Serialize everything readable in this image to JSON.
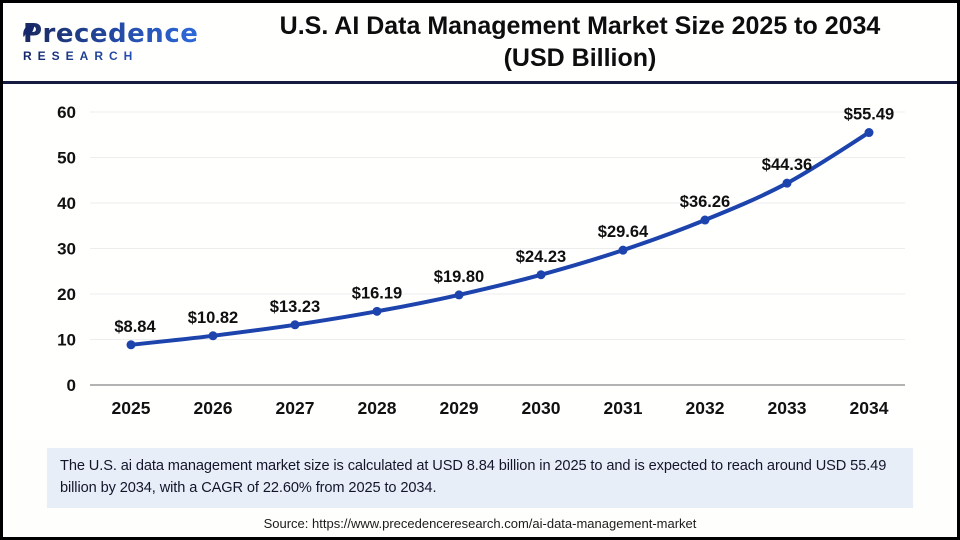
{
  "header": {
    "logo": {
      "brand": "Precedence",
      "sub": "RESEARCH"
    },
    "title_line1": "U.S. AI Data Management Market Size 2025 to 2034",
    "title_line2": "(USD Billion)"
  },
  "chart_data": {
    "type": "line",
    "title": "U.S. AI Data Management Market Size 2025 to 2034 (USD Billion)",
    "categories": [
      "2025",
      "2026",
      "2027",
      "2028",
      "2029",
      "2030",
      "2031",
      "2032",
      "2033",
      "2034"
    ],
    "values": [
      8.84,
      10.82,
      13.23,
      16.19,
      19.8,
      24.23,
      29.64,
      36.26,
      44.36,
      55.49
    ],
    "point_labels": [
      "$8.84",
      "$10.82",
      "$13.23",
      "$16.19",
      "$19.80",
      "$24.23",
      "$29.64",
      "$36.26",
      "$44.36",
      "$55.49"
    ],
    "xlabel": "",
    "ylabel": "",
    "ylim": [
      0,
      60
    ],
    "yticks": [
      0,
      10,
      20,
      30,
      40,
      50,
      60
    ],
    "grid": true,
    "legend": "none",
    "colors": {
      "line": "#1d44ad",
      "marker": "#1d44ad",
      "gridline": "#ededed",
      "axis_line": "#b3b3b3",
      "tick_text": "#111111",
      "label_text": "#0f0f0f"
    }
  },
  "note": {
    "text": "The U.S. ai data management market size is calculated at USD 8.84 billion in 2025 to and is expected to reach around USD 55.49 billion by 2034, with a CAGR of 22.60% from 2025 to 2034."
  },
  "source": {
    "text": "Source: https://www.precedenceresearch.com/ai-data-management-market"
  }
}
